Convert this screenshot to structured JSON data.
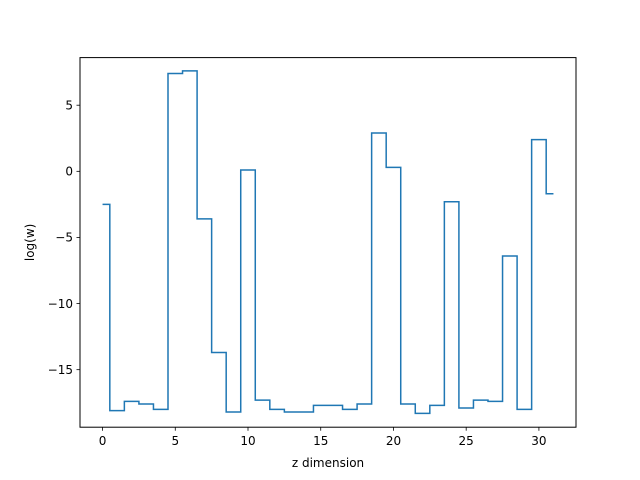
{
  "chart_data": {
    "type": "line",
    "drawstyle": "steps-mid",
    "title": "",
    "xlabel": "z dimension",
    "ylabel": "log(w)",
    "xlim": [
      -1.55,
      32.55
    ],
    "ylim": [
      -19.35,
      8.6
    ],
    "grid": false,
    "xticks": [
      0,
      5,
      10,
      15,
      20,
      25,
      30
    ],
    "yticks": [
      -15,
      -10,
      -5,
      0,
      5
    ],
    "series": [
      {
        "color": "#1f77b4",
        "x": [
          0,
          1,
          2,
          3,
          4,
          5,
          6,
          7,
          8,
          9,
          10,
          11,
          12,
          13,
          14,
          15,
          16,
          17,
          18,
          19,
          20,
          21,
          22,
          23,
          24,
          25,
          26,
          27,
          28,
          29,
          30,
          31
        ],
        "y": [
          -2.5,
          -18.1,
          -17.4,
          -17.6,
          -18.0,
          7.4,
          7.6,
          -3.6,
          -13.7,
          -18.2,
          0.1,
          -17.3,
          -18.0,
          -18.2,
          -18.2,
          -17.7,
          -17.7,
          -18.0,
          -17.6,
          2.9,
          0.3,
          -17.6,
          -18.3,
          -17.7,
          -2.3,
          -17.9,
          -17.3,
          -17.4,
          -6.4,
          -18.0,
          2.4,
          -1.7
        ]
      }
    ]
  }
}
